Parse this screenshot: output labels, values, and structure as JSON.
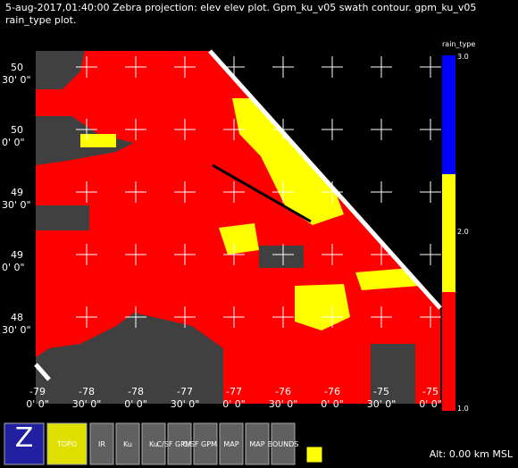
{
  "header": {
    "line1": "5-aug-2017,01:40:00  Zebra projection: elev elev  plot.  Gpm_ku_v05 swath contour.  gpm_ku_v05",
    "line2": "rain_type  plot."
  },
  "map": {
    "lat_labels": [
      {
        "deg": "50",
        "min": "30' 0\""
      },
      {
        "deg": "50",
        "min": "0' 0\""
      },
      {
        "deg": "49",
        "min": "30' 0\""
      },
      {
        "deg": "49",
        "min": "0' 0\""
      },
      {
        "deg": "48",
        "min": "30' 0\""
      }
    ],
    "lon_labels": [
      {
        "deg": "-79",
        "min": "0' 0\""
      },
      {
        "deg": "-78",
        "min": "30' 0\""
      },
      {
        "deg": "-78",
        "min": "0' 0\""
      },
      {
        "deg": "-77",
        "min": "30' 0\""
      },
      {
        "deg": "-77",
        "min": "0' 0\""
      },
      {
        "deg": "-76",
        "min": "30' 0\""
      },
      {
        "deg": "-76",
        "min": "0' 0\""
      },
      {
        "deg": "-75",
        "min": "30' 0\""
      },
      {
        "deg": "-75",
        "min": "0' 0\""
      }
    ]
  },
  "colorbar": {
    "title": "rain_type",
    "labels": [
      "3.0",
      "2.0",
      "1.0"
    ]
  },
  "toolbar": {
    "buttons": [
      "Z",
      "TOPO",
      "IR",
      "Ku",
      "Ku",
      "C/SF GPM Ku",
      "C/SF GPM Ku",
      "MAP",
      "MAP",
      "BOUNDS"
    ],
    "status": "Alt: 0.00 km MSL"
  }
}
